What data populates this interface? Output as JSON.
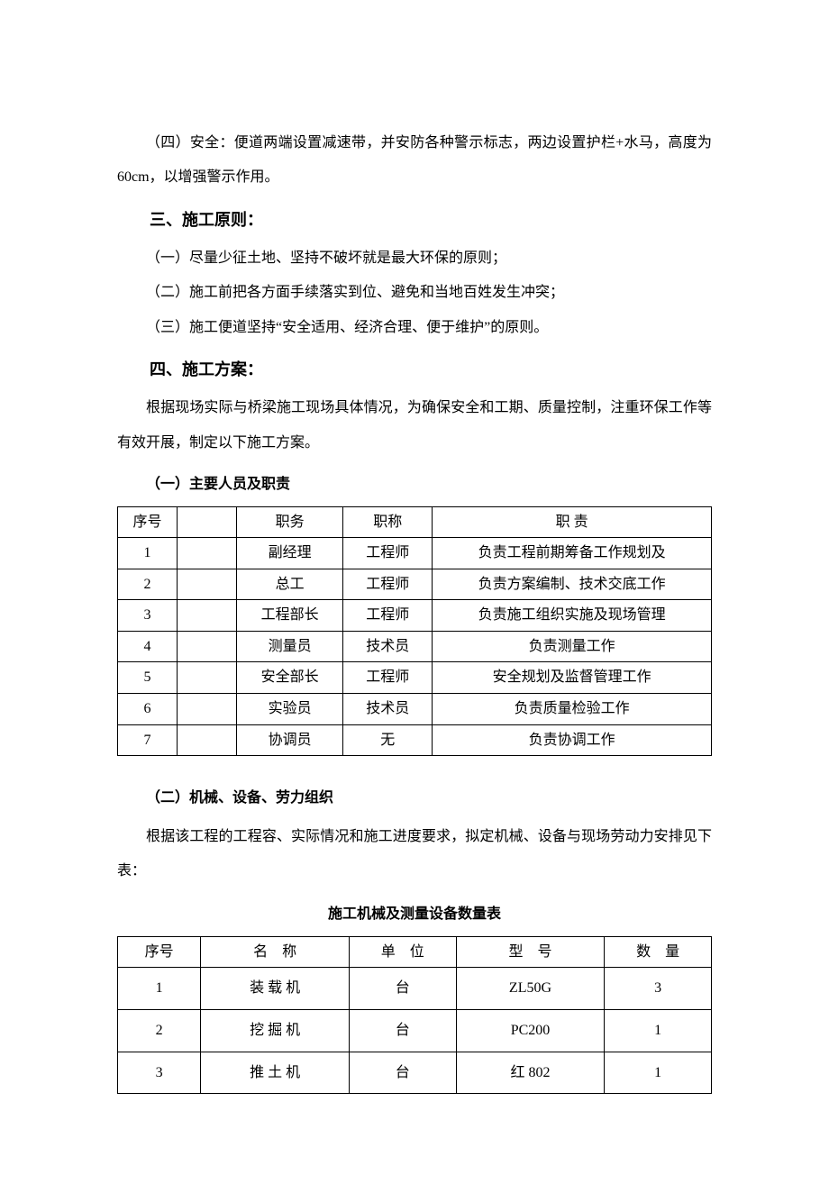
{
  "para_safety": "（四）安全：便道两端设置减速带，并安防各种警示标志，两边设置护栏+水马，高度为 60cm，以增强警示作用。",
  "section3": {
    "heading": "三、施工原则：",
    "items": [
      "（一）尽量少征土地、坚持不破坏就是最大环保的原则；",
      "（二）施工前把各方面手续落实到位、避免和当地百姓发生冲突；",
      "（三）施工便道坚持“安全适用、经济合理、便于维护”的原则。"
    ]
  },
  "section4": {
    "heading": "四、施工方案：",
    "intro": "根据现场实际与桥梁施工现场具体情况，为确保安全和工期、质量控制，注重环保工作等有效开展，制定以下施工方案。",
    "sub1_heading": "（一）主要人员及职责",
    "table1": {
      "columns": [
        "序号",
        "",
        "职务",
        "职称",
        "职 责"
      ],
      "col_widths": [
        "10%",
        "10%",
        "18%",
        "15%",
        "47%"
      ],
      "rows": [
        [
          "1",
          "",
          "副经理",
          "工程师",
          "负责工程前期筹备工作规划及"
        ],
        [
          "2",
          "",
          "总工",
          "工程师",
          "负责方案编制、技术交底工作"
        ],
        [
          "3",
          "",
          "工程部长",
          "工程师",
          "负责施工组织实施及现场管理"
        ],
        [
          "4",
          "",
          "测量员",
          "技术员",
          "负责测量工作"
        ],
        [
          "5",
          "",
          "安全部长",
          "工程师",
          "安全规划及监督管理工作"
        ],
        [
          "6",
          "",
          "实验员",
          "技术员",
          "负责质量检验工作"
        ],
        [
          "7",
          "",
          "协调员",
          "无",
          "负责协调工作"
        ]
      ]
    },
    "sub2_heading": "（二）机械、设备、劳力组织",
    "sub2_intro": "根据该工程的工程容、实际情况和施工进度要求，拟定机械、设备与现场劳动力安排见下表：",
    "table2_caption": "施工机械及测量设备数量表",
    "table2": {
      "columns": [
        "序号",
        "名　称",
        "单　位",
        "型　号",
        "数　量"
      ],
      "col_widths": [
        "14%",
        "25%",
        "18%",
        "25%",
        "18%"
      ],
      "rows": [
        [
          "1",
          "装 载 机",
          "台",
          "ZL50G",
          "3"
        ],
        [
          "2",
          "挖 掘 机",
          "台",
          "PC200",
          "1"
        ],
        [
          "3",
          "推 土 机",
          "台",
          "红 802",
          "1"
        ]
      ]
    }
  }
}
